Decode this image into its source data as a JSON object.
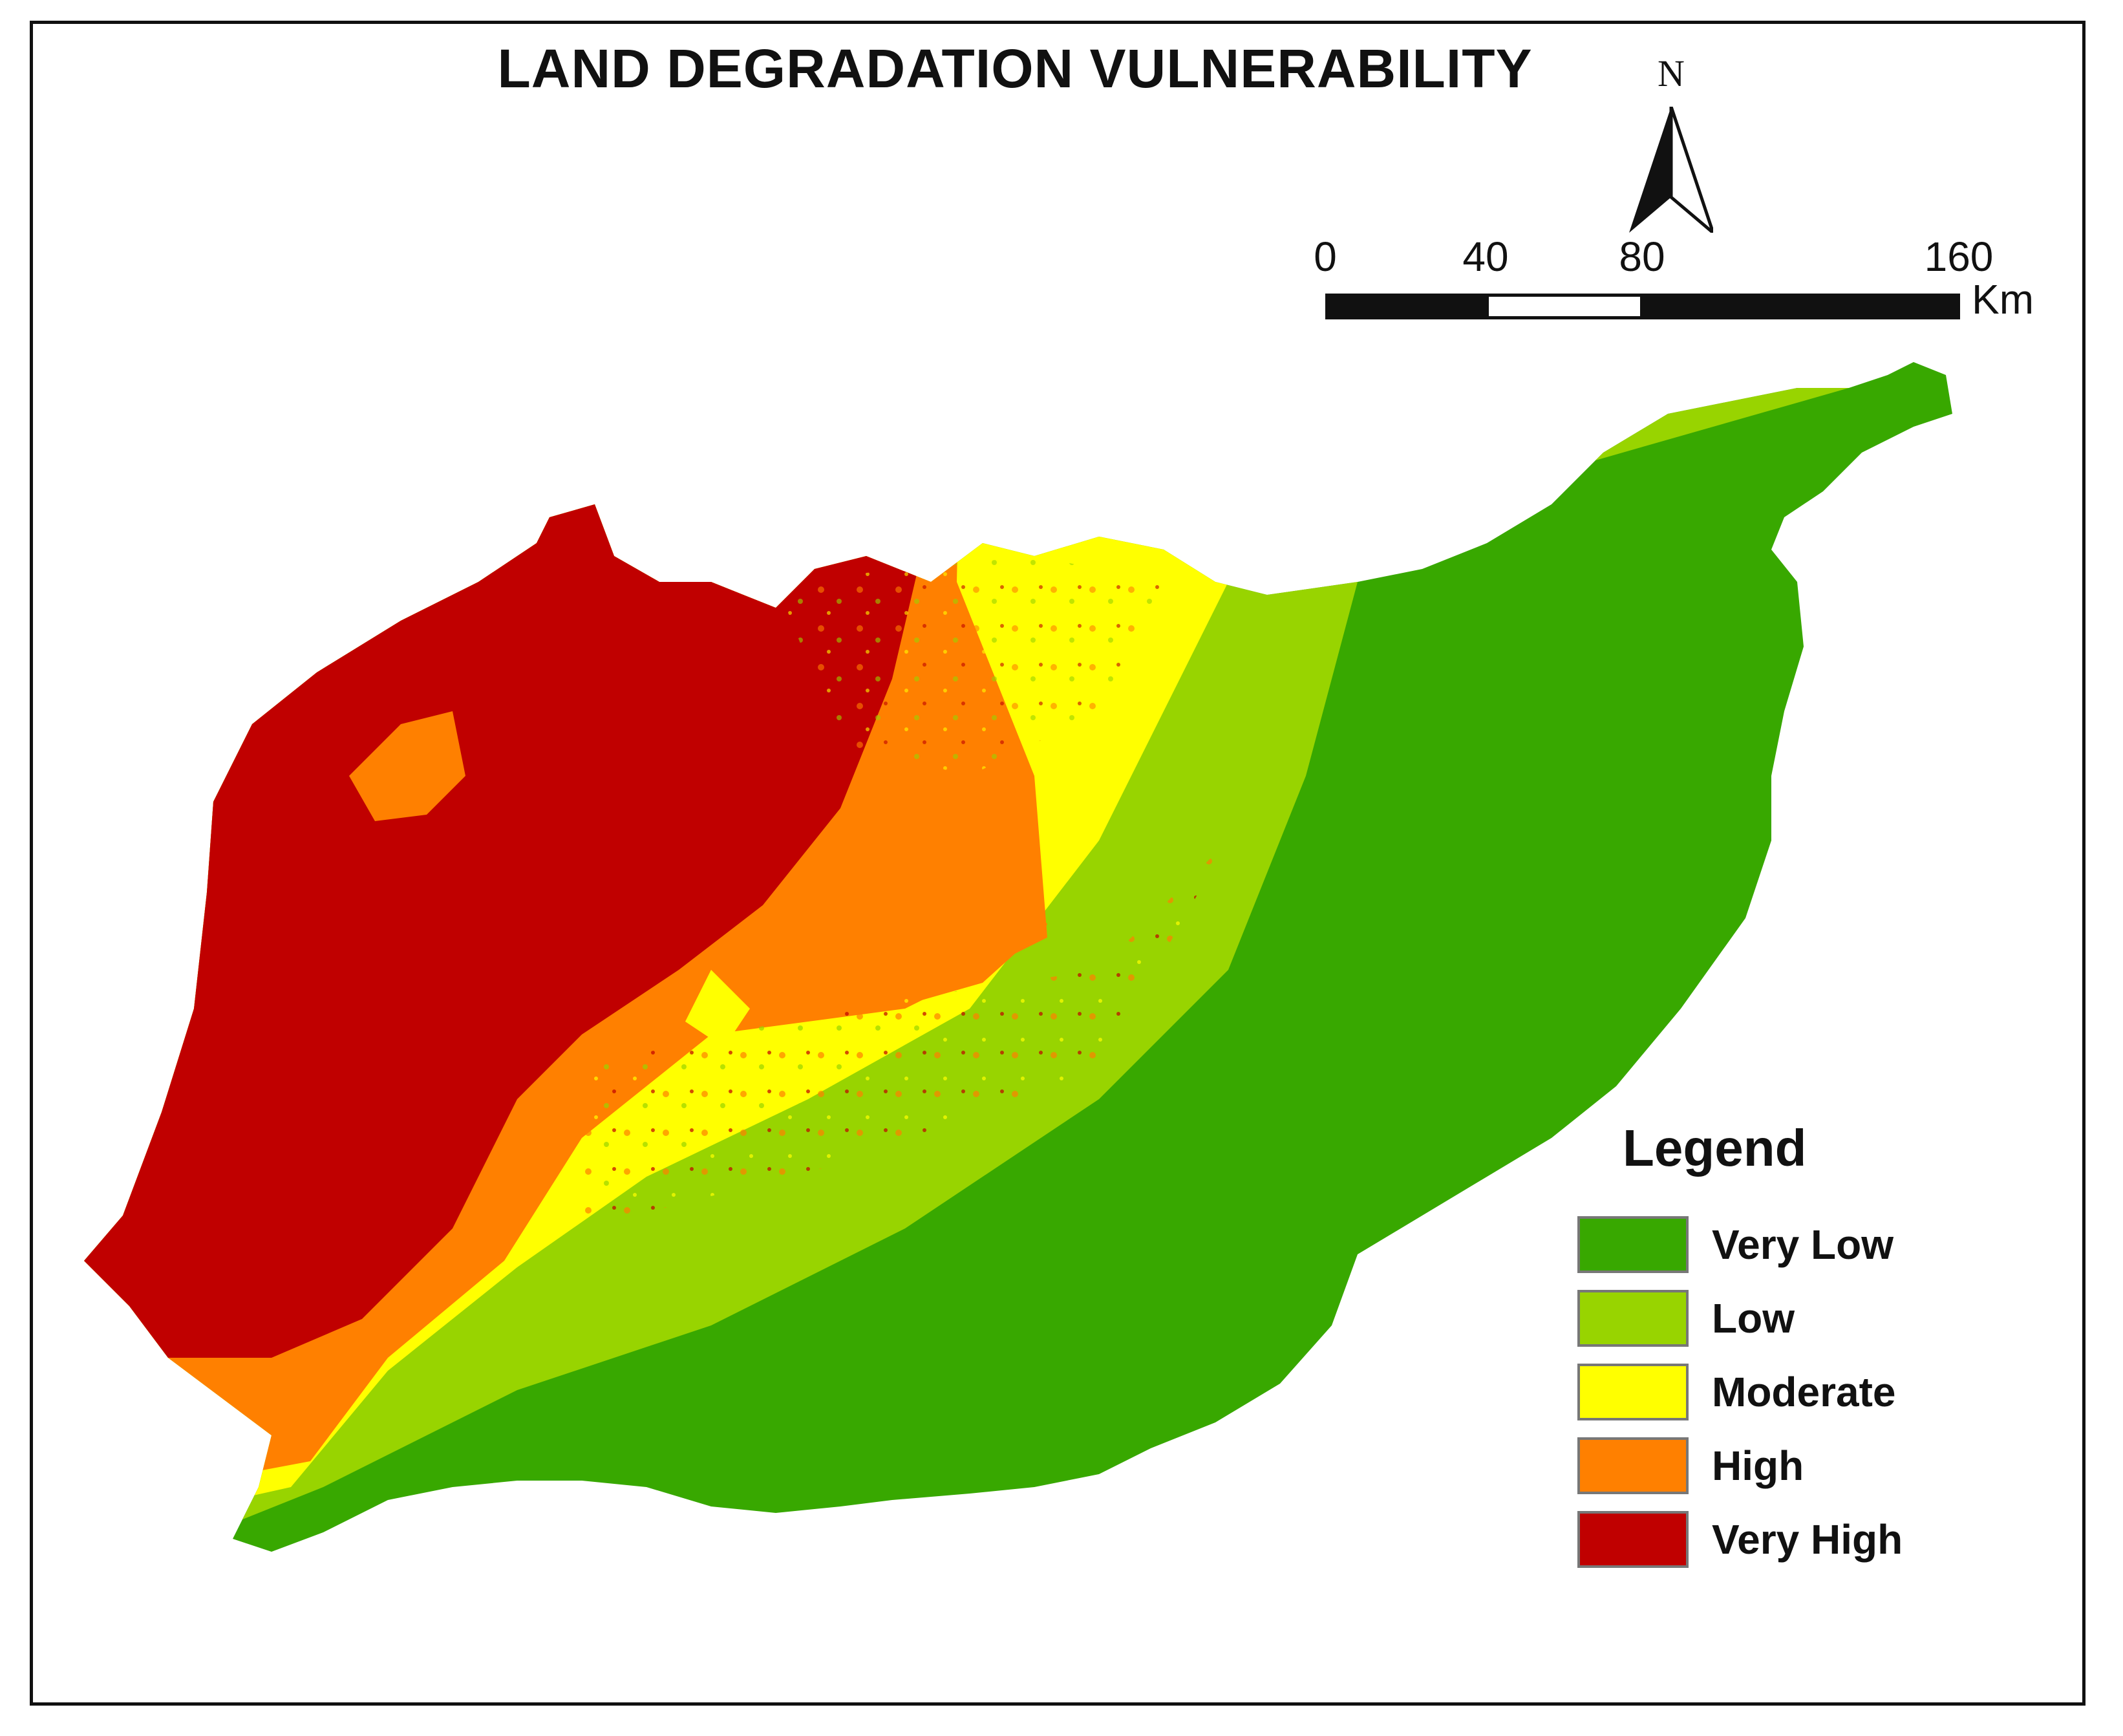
{
  "title": "LAND DEGRADATION VULNERABILITY",
  "north_arrow": {
    "label": "N"
  },
  "scale_bar": {
    "ticks": [
      "0",
      "40",
      "80",
      "160"
    ],
    "tick_values": [
      0,
      40,
      80,
      160
    ],
    "unit": "Km"
  },
  "legend": {
    "title": "Legend",
    "items": [
      {
        "label": "Very Low",
        "color": "#38a800"
      },
      {
        "label": "Low",
        "color": "#98d400"
      },
      {
        "label": "Moderate",
        "color": "#ffff00"
      },
      {
        "label": "High",
        "color": "#ff8000"
      },
      {
        "label": "Very High",
        "color": "#c00000"
      }
    ]
  },
  "colors": {
    "frame": "#111111",
    "background": "#ffffff"
  }
}
